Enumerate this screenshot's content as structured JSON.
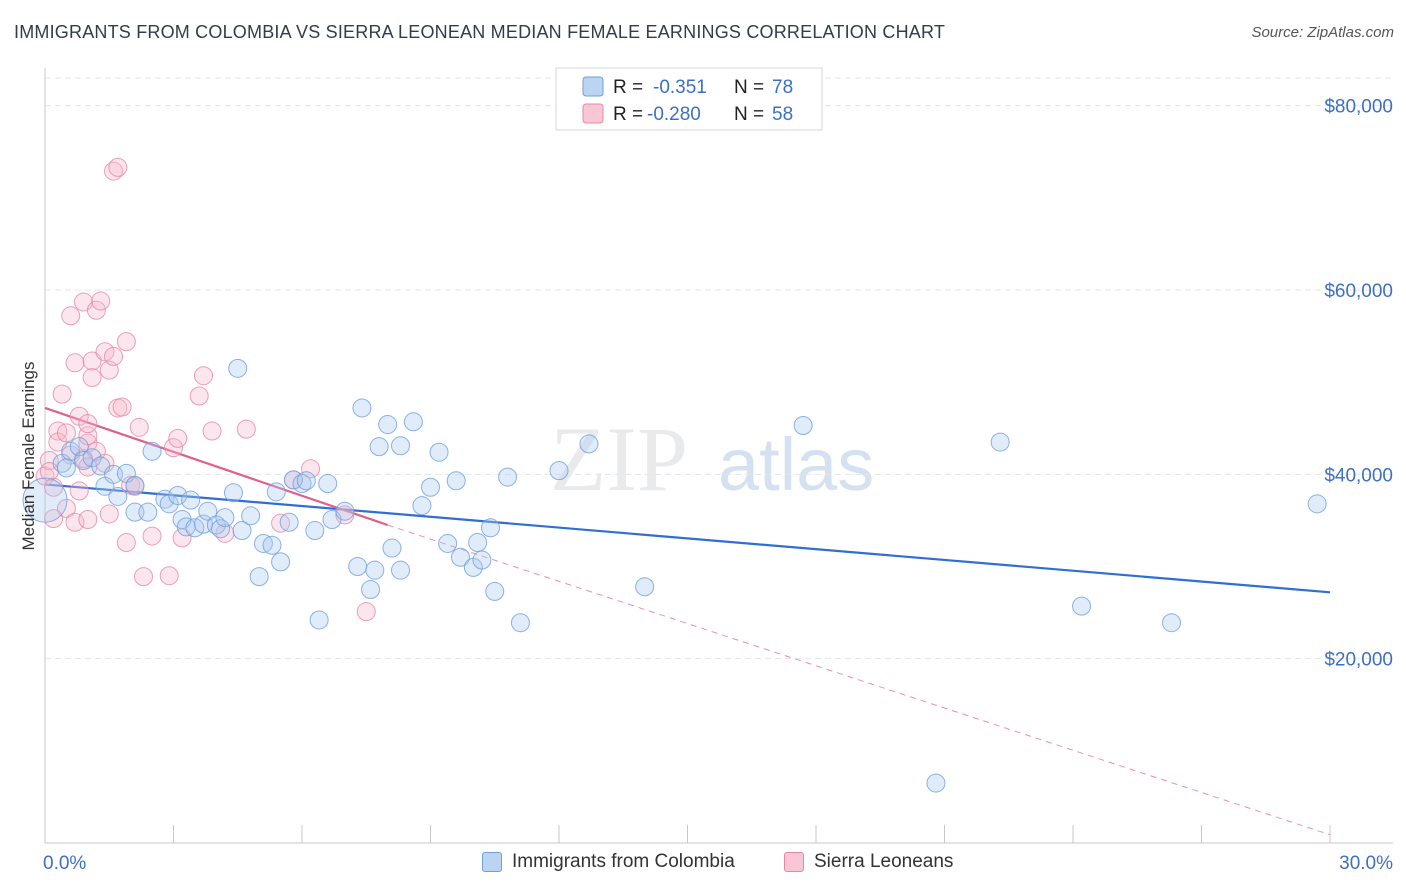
{
  "title": "IMMIGRANTS FROM COLOMBIA VS SIERRA LEONEAN MEDIAN FEMALE EARNINGS CORRELATION CHART",
  "source": "Source: ZipAtlas.com",
  "watermark": {
    "zip": "ZIP",
    "atlas": "atlas"
  },
  "colors": {
    "blue": "#a9c8f0",
    "blue_stroke": "#6f9fdc",
    "blue_line": "#2e6fd1",
    "pink": "#f7b8cc",
    "pink_stroke": "#e687a7",
    "pink_line": "#e0608c",
    "axis_label": "#3d6fc4"
  },
  "legend": {
    "r_label": "R =",
    "n_label": "N =",
    "series": [
      {
        "r": "-0.351",
        "n": "78"
      },
      {
        "r": "-0.280",
        "n": "58"
      }
    ]
  },
  "chart_data": {
    "type": "scatter",
    "xlabel": "",
    "ylabel": "Median Female Earnings",
    "xlim": [
      0,
      30
    ],
    "ylim": [
      0,
      83000
    ],
    "x_tick_labels": [
      "0.0%",
      "30.0%"
    ],
    "y_ticks": [
      {
        "value": 20000,
        "label": "$20,000"
      },
      {
        "value": 40000,
        "label": "$40,000"
      },
      {
        "value": 60000,
        "label": "$60,000"
      },
      {
        "value": 80000,
        "label": "$80,000"
      }
    ],
    "grid": true,
    "legend_position": "top-center",
    "series": [
      {
        "name": "Immigrants from Colombia",
        "color": "blue",
        "trend": {
          "x": [
            0,
            30
          ],
          "y": [
            38900,
            27200
          ]
        },
        "points": [
          [
            0.0,
            37200
          ],
          [
            0.4,
            41200
          ],
          [
            0.5,
            40700
          ],
          [
            0.6,
            42500
          ],
          [
            0.8,
            43000
          ],
          [
            0.9,
            41500
          ],
          [
            1.1,
            41800
          ],
          [
            1.3,
            40900
          ],
          [
            1.4,
            38700
          ],
          [
            1.6,
            40000
          ],
          [
            1.7,
            37600
          ],
          [
            1.9,
            40100
          ],
          [
            2.1,
            38800
          ],
          [
            2.1,
            35900
          ],
          [
            2.4,
            35900
          ],
          [
            2.5,
            42500
          ],
          [
            2.8,
            37300
          ],
          [
            2.9,
            36800
          ],
          [
            3.1,
            37700
          ],
          [
            3.2,
            35100
          ],
          [
            3.4,
            37200
          ],
          [
            3.3,
            34300
          ],
          [
            3.5,
            34200
          ],
          [
            3.7,
            34600
          ],
          [
            3.8,
            36000
          ],
          [
            4.0,
            34500
          ],
          [
            4.1,
            34100
          ],
          [
            4.2,
            35300
          ],
          [
            4.4,
            38000
          ],
          [
            4.5,
            51500
          ],
          [
            4.6,
            33900
          ],
          [
            4.8,
            35500
          ],
          [
            5.0,
            28900
          ],
          [
            5.1,
            32500
          ],
          [
            5.3,
            32300
          ],
          [
            5.4,
            38100
          ],
          [
            5.5,
            30500
          ],
          [
            5.7,
            34800
          ],
          [
            5.8,
            39400
          ],
          [
            6.0,
            39000
          ],
          [
            6.1,
            39300
          ],
          [
            6.3,
            33900
          ],
          [
            6.4,
            24200
          ],
          [
            6.6,
            39000
          ],
          [
            6.7,
            35100
          ],
          [
            7.0,
            36000
          ],
          [
            7.3,
            30000
          ],
          [
            7.4,
            47200
          ],
          [
            7.6,
            27500
          ],
          [
            7.7,
            29600
          ],
          [
            7.8,
            43000
          ],
          [
            8.0,
            45400
          ],
          [
            8.1,
            32000
          ],
          [
            8.3,
            43100
          ],
          [
            8.3,
            29600
          ],
          [
            8.6,
            45700
          ],
          [
            8.8,
            36600
          ],
          [
            9.0,
            38600
          ],
          [
            9.2,
            42400
          ],
          [
            9.4,
            32500
          ],
          [
            9.6,
            39300
          ],
          [
            9.7,
            31000
          ],
          [
            10.0,
            29900
          ],
          [
            10.1,
            32600
          ],
          [
            10.2,
            30700
          ],
          [
            10.4,
            34200
          ],
          [
            10.5,
            27300
          ],
          [
            10.8,
            39700
          ],
          [
            11.1,
            23900
          ],
          [
            12.0,
            40400
          ],
          [
            12.7,
            43300
          ],
          [
            14.0,
            27800
          ],
          [
            17.7,
            45300
          ],
          [
            20.8,
            6500
          ],
          [
            22.3,
            43500
          ],
          [
            24.2,
            25700
          ],
          [
            26.3,
            23900
          ],
          [
            29.7,
            36800
          ]
        ]
      },
      {
        "name": "Sierra Leoneans",
        "color": "pink",
        "trend": {
          "x": [
            0,
            8.0
          ],
          "y": [
            47200,
            34500
          ]
        },
        "trend_ext": {
          "x": [
            8.0,
            30
          ],
          "y": [
            34500,
            900
          ]
        },
        "points": [
          [
            0.0,
            39800
          ],
          [
            0.1,
            41500
          ],
          [
            0.1,
            40300
          ],
          [
            0.2,
            38600
          ],
          [
            0.3,
            44700
          ],
          [
            0.3,
            43500
          ],
          [
            0.4,
            48700
          ],
          [
            0.5,
            44500
          ],
          [
            0.5,
            36300
          ],
          [
            0.6,
            42100
          ],
          [
            0.6,
            57200
          ],
          [
            0.7,
            52100
          ],
          [
            0.7,
            34800
          ],
          [
            0.8,
            46300
          ],
          [
            0.8,
            38200
          ],
          [
            0.9,
            58700
          ],
          [
            0.9,
            41700
          ],
          [
            1.0,
            43400
          ],
          [
            1.0,
            40800
          ],
          [
            1.0,
            44200
          ],
          [
            1.1,
            50500
          ],
          [
            1.1,
            52300
          ],
          [
            1.0,
            45500
          ],
          [
            1.2,
            42500
          ],
          [
            1.2,
            57800
          ],
          [
            1.3,
            58800
          ],
          [
            1.4,
            41200
          ],
          [
            1.4,
            53300
          ],
          [
            1.5,
            35700
          ],
          [
            1.5,
            51300
          ],
          [
            1.6,
            52800
          ],
          [
            1.6,
            72900
          ],
          [
            1.7,
            73300
          ],
          [
            1.7,
            47200
          ],
          [
            1.8,
            47300
          ],
          [
            1.9,
            32600
          ],
          [
            1.9,
            54400
          ],
          [
            2.0,
            38800
          ],
          [
            2.1,
            38700
          ],
          [
            2.2,
            45100
          ],
          [
            2.3,
            28900
          ],
          [
            2.5,
            33300
          ],
          [
            2.9,
            29000
          ],
          [
            3.0,
            42900
          ],
          [
            3.1,
            43900
          ],
          [
            3.2,
            33100
          ],
          [
            3.6,
            48500
          ],
          [
            3.7,
            50700
          ],
          [
            3.9,
            44700
          ],
          [
            4.2,
            33600
          ],
          [
            4.7,
            44900
          ],
          [
            5.5,
            34700
          ],
          [
            5.8,
            39400
          ],
          [
            6.2,
            40600
          ],
          [
            7.0,
            35600
          ],
          [
            7.5,
            25100
          ],
          [
            0.2,
            35200
          ],
          [
            1.0,
            35100
          ]
        ]
      }
    ]
  }
}
